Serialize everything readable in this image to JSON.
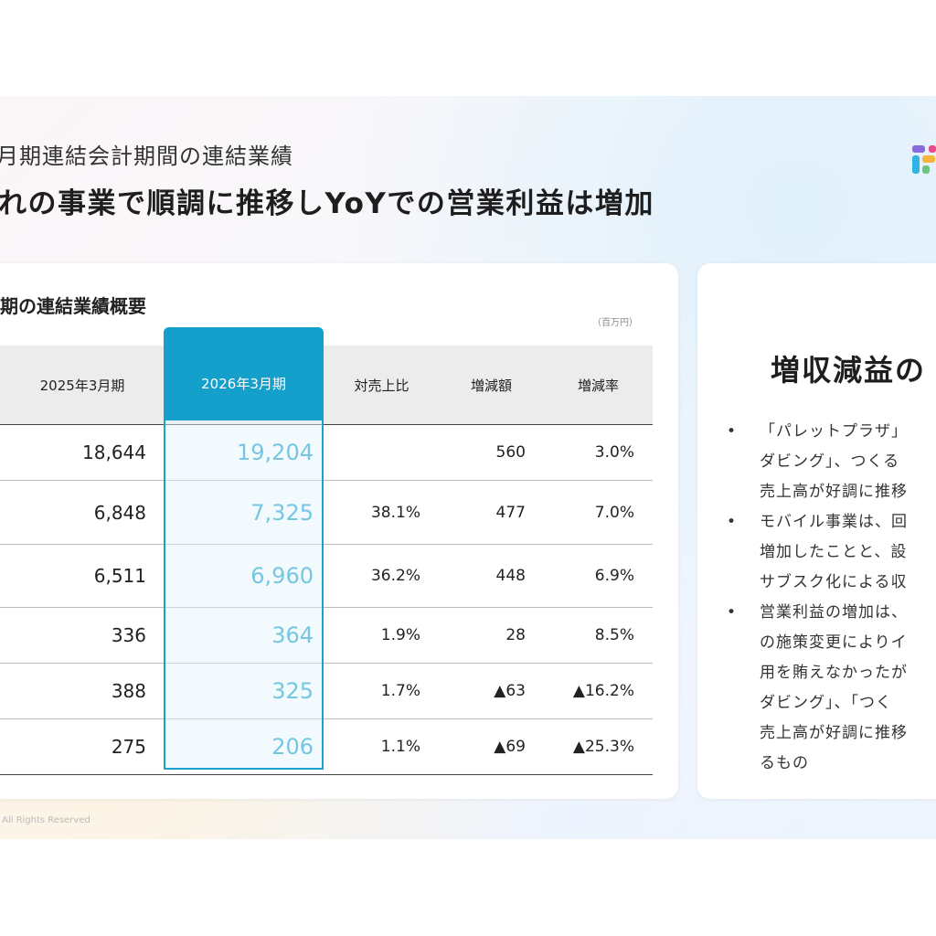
{
  "header": {
    "subtitle": "月期連結会計期間の連結業績",
    "headline": "れの事業で順調に推移しYoYでの営業利益は増加"
  },
  "table_panel": {
    "title": "期の連結業績概要",
    "unit": "（百万円）",
    "columns": [
      "",
      "2025年3月期",
      "2026年3月期",
      "対売上比",
      "増減額",
      "増減率"
    ],
    "rows": [
      [
        "",
        "18,644",
        "19,204",
        "",
        "560",
        "3.0%"
      ],
      [
        "",
        "6,848",
        "7,325",
        "38.1%",
        "477",
        "7.0%"
      ],
      [
        "",
        "6,511",
        "6,960",
        "36.2%",
        "448",
        "6.9%"
      ],
      [
        "",
        "336",
        "364",
        "1.9%",
        "28",
        "8.5%"
      ],
      [
        "",
        "388",
        "325",
        "1.7%",
        "▲63",
        "▲16.2%"
      ],
      [
        "",
        "275",
        "206",
        "1.1%",
        "▲69",
        "▲25.3%"
      ]
    ]
  },
  "summary_panel": {
    "title": "増収減益の",
    "bullets": [
      [
        "「パレットプラザ」",
        "ダビング」、つくる",
        "売上高が好調に推移"
      ],
      [
        "モバイル事業は、回",
        "増加したことと、設",
        "サブスク化による収"
      ],
      [
        "営業利益の増加は、",
        "の施策変更によりイ",
        "用を賄えなかったが",
        "ダビング」、「つく",
        "売上高が好調に推移",
        "るもの"
      ]
    ]
  },
  "footer": {
    "copyright": "All Rights Reserved"
  },
  "colors": {
    "accent": "#1aa1cc",
    "header_bg": "#ececec"
  },
  "logo": {
    "icon": "company-logo-icon"
  }
}
